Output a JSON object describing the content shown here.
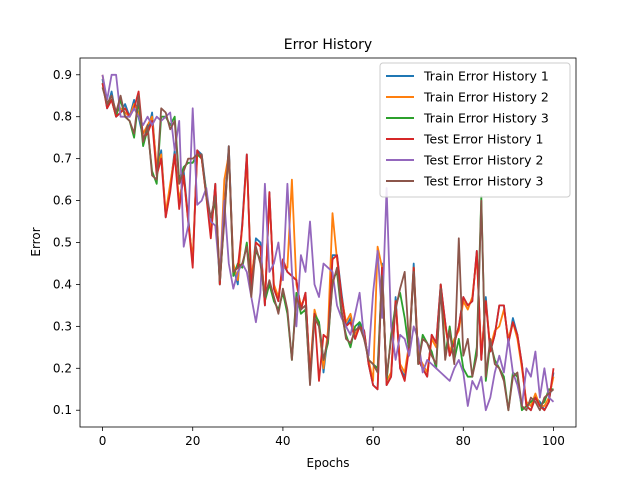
{
  "chart_data": {
    "type": "line",
    "title": "Error History",
    "xlabel": "Epochs",
    "ylabel": "Error",
    "xlim": [
      -5,
      105
    ],
    "ylim": [
      0.06,
      0.94
    ],
    "xticks": [
      0,
      20,
      40,
      60,
      80,
      100
    ],
    "yticks": [
      0.1,
      0.2,
      0.3,
      0.4,
      0.5,
      0.6,
      0.7,
      0.8,
      0.9
    ],
    "grid": false,
    "legend": "top-right",
    "series": [
      {
        "name": "Train Error History 1",
        "color": "#1f77b4",
        "x": [
          0,
          1,
          2,
          3,
          4,
          5,
          6,
          7,
          8,
          9,
          10,
          11,
          12,
          13,
          14,
          15,
          16,
          17,
          18,
          19,
          20,
          21,
          22,
          23,
          24,
          25,
          26,
          27,
          28,
          29,
          30,
          31,
          32,
          33,
          34,
          35,
          36,
          37,
          38,
          39,
          40,
          41,
          42,
          43,
          44,
          45,
          46,
          47,
          48,
          49,
          50,
          51,
          52,
          53,
          54,
          55,
          56,
          57,
          58,
          59,
          60,
          61,
          62,
          63,
          64,
          65,
          66,
          67,
          68,
          69,
          70,
          71,
          72,
          73,
          74,
          75,
          76,
          77,
          78,
          79,
          80,
          81,
          82,
          83,
          84,
          85,
          86,
          87,
          88,
          89,
          90,
          91,
          92,
          93,
          94,
          95,
          96,
          97,
          98,
          99,
          100
        ],
        "values": [
          0.89,
          0.82,
          0.86,
          0.8,
          0.81,
          0.83,
          0.8,
          0.84,
          0.8,
          0.75,
          0.76,
          0.81,
          0.67,
          0.72,
          0.56,
          0.63,
          0.72,
          0.59,
          0.67,
          0.56,
          0.45,
          0.72,
          0.71,
          0.62,
          0.52,
          0.64,
          0.4,
          0.58,
          0.73,
          0.44,
          0.4,
          0.55,
          0.71,
          0.4,
          0.51,
          0.5,
          0.35,
          0.62,
          0.39,
          0.36,
          0.45,
          0.43,
          0.42,
          0.41,
          0.34,
          0.38,
          0.18,
          0.33,
          0.31,
          0.19,
          0.28,
          0.47,
          0.47,
          0.38,
          0.3,
          0.32,
          0.27,
          0.31,
          0.29,
          0.21,
          0.16,
          0.15,
          0.45,
          0.16,
          0.18,
          0.37,
          0.2,
          0.18,
          0.25,
          0.45,
          0.22,
          0.2,
          0.18,
          0.28,
          0.26,
          0.4,
          0.31,
          0.23,
          0.26,
          0.3,
          0.37,
          0.35,
          0.36,
          0.48,
          0.22,
          0.37,
          0.24,
          0.28,
          0.35,
          0.35,
          0.26,
          0.32,
          0.28,
          0.21,
          0.11,
          0.1,
          0.13,
          0.12,
          0.1,
          0.12,
          0.19
        ]
      },
      {
        "name": "Train Error History 2",
        "color": "#ff7f0e",
        "x": [
          0,
          1,
          2,
          3,
          4,
          5,
          6,
          7,
          8,
          9,
          10,
          11,
          12,
          13,
          14,
          15,
          16,
          17,
          18,
          19,
          20,
          21,
          22,
          23,
          24,
          25,
          26,
          27,
          28,
          29,
          30,
          31,
          32,
          33,
          34,
          35,
          36,
          37,
          38,
          39,
          40,
          41,
          42,
          43,
          44,
          45,
          46,
          47,
          48,
          49,
          50,
          51,
          52,
          53,
          54,
          55,
          56,
          57,
          58,
          59,
          60,
          61,
          62,
          63,
          64,
          65,
          66,
          67,
          68,
          69,
          70,
          71,
          72,
          73,
          74,
          75,
          76,
          77,
          78,
          79,
          80,
          81,
          82,
          83,
          84,
          85,
          86,
          87,
          88,
          89,
          90,
          91,
          92,
          93,
          94,
          95,
          96,
          97,
          98,
          99,
          100
        ],
        "values": [
          0.9,
          0.83,
          0.85,
          0.81,
          0.82,
          0.81,
          0.8,
          0.83,
          0.81,
          0.76,
          0.78,
          0.8,
          0.68,
          0.71,
          0.57,
          0.64,
          0.71,
          0.6,
          0.66,
          0.55,
          0.46,
          0.71,
          0.7,
          0.61,
          0.53,
          0.63,
          0.41,
          0.65,
          0.71,
          0.45,
          0.41,
          0.54,
          0.7,
          0.41,
          0.5,
          0.49,
          0.36,
          0.61,
          0.4,
          0.37,
          0.44,
          0.44,
          0.65,
          0.4,
          0.35,
          0.37,
          0.19,
          0.34,
          0.3,
          0.2,
          0.29,
          0.57,
          0.46,
          0.37,
          0.31,
          0.33,
          0.28,
          0.3,
          0.28,
          0.22,
          0.17,
          0.49,
          0.44,
          0.17,
          0.19,
          0.36,
          0.21,
          0.19,
          0.26,
          0.44,
          0.23,
          0.21,
          0.19,
          0.27,
          0.25,
          0.39,
          0.3,
          0.24,
          0.27,
          0.29,
          0.36,
          0.34,
          0.37,
          0.47,
          0.23,
          0.36,
          0.25,
          0.29,
          0.3,
          0.34,
          0.27,
          0.31,
          0.27,
          0.2,
          0.12,
          0.11,
          0.14,
          0.11,
          0.11,
          0.13,
          0.18
        ]
      },
      {
        "name": "Train Error History 3",
        "color": "#2ca02c",
        "x": [
          0,
          1,
          2,
          3,
          4,
          5,
          6,
          7,
          8,
          9,
          10,
          11,
          12,
          13,
          14,
          15,
          16,
          17,
          18,
          19,
          20,
          21,
          22,
          23,
          24,
          25,
          26,
          27,
          28,
          29,
          30,
          31,
          32,
          33,
          34,
          35,
          36,
          37,
          38,
          39,
          40,
          41,
          42,
          43,
          44,
          45,
          46,
          47,
          48,
          49,
          50,
          51,
          52,
          53,
          54,
          55,
          56,
          57,
          58,
          59,
          60,
          61,
          62,
          63,
          64,
          65,
          66,
          67,
          68,
          69,
          70,
          71,
          72,
          73,
          74,
          75,
          76,
          77,
          78,
          79,
          80,
          81,
          82,
          83,
          84,
          85,
          86,
          87,
          88,
          89,
          90,
          91,
          92,
          93,
          94,
          95,
          96,
          97,
          98,
          99,
          100
        ],
        "values": [
          0.88,
          0.83,
          0.84,
          0.8,
          0.84,
          0.8,
          0.79,
          0.75,
          0.84,
          0.73,
          0.77,
          0.67,
          0.64,
          0.8,
          0.8,
          0.78,
          0.8,
          0.65,
          0.68,
          0.69,
          0.69,
          0.71,
          0.7,
          0.62,
          0.55,
          0.6,
          0.4,
          0.56,
          0.72,
          0.42,
          0.45,
          0.44,
          0.5,
          0.4,
          0.48,
          0.46,
          0.36,
          0.4,
          0.36,
          0.34,
          0.38,
          0.33,
          0.22,
          0.38,
          0.33,
          0.34,
          0.17,
          0.33,
          0.31,
          0.22,
          0.26,
          0.41,
          0.43,
          0.33,
          0.28,
          0.25,
          0.3,
          0.31,
          0.28,
          0.22,
          0.21,
          0.2,
          0.43,
          0.17,
          0.28,
          0.35,
          0.38,
          0.32,
          0.24,
          0.44,
          0.21,
          0.28,
          0.26,
          0.24,
          0.2,
          0.4,
          0.23,
          0.3,
          0.22,
          0.27,
          0.2,
          0.18,
          0.18,
          0.25,
          0.61,
          0.17,
          0.26,
          0.22,
          0.2,
          0.18,
          0.1,
          0.19,
          0.18,
          0.1,
          0.11,
          0.12,
          0.13,
          0.11,
          0.12,
          0.15,
          0.15
        ]
      },
      {
        "name": "Test Error History 1",
        "color": "#d62728",
        "x": [
          0,
          1,
          2,
          3,
          4,
          5,
          6,
          7,
          8,
          9,
          10,
          11,
          12,
          13,
          14,
          15,
          16,
          17,
          18,
          19,
          20,
          21,
          22,
          23,
          24,
          25,
          26,
          27,
          28,
          29,
          30,
          31,
          32,
          33,
          34,
          35,
          36,
          37,
          38,
          39,
          40,
          41,
          42,
          43,
          44,
          45,
          46,
          47,
          48,
          49,
          50,
          51,
          52,
          53,
          54,
          55,
          56,
          57,
          58,
          59,
          60,
          61,
          62,
          63,
          64,
          65,
          66,
          67,
          68,
          69,
          70,
          71,
          72,
          73,
          74,
          75,
          76,
          77,
          78,
          79,
          80,
          81,
          82,
          83,
          84,
          85,
          86,
          87,
          88,
          89,
          90,
          91,
          92,
          93,
          94,
          95,
          96,
          97,
          98,
          99,
          100
        ],
        "values": [
          0.88,
          0.82,
          0.84,
          0.8,
          0.81,
          0.82,
          0.8,
          0.82,
          0.86,
          0.75,
          0.76,
          0.79,
          0.66,
          0.7,
          0.56,
          0.62,
          0.71,
          0.58,
          0.66,
          0.55,
          0.44,
          0.72,
          0.7,
          0.61,
          0.51,
          0.64,
          0.4,
          0.57,
          0.72,
          0.43,
          0.44,
          0.54,
          0.71,
          0.39,
          0.5,
          0.49,
          0.35,
          0.62,
          0.39,
          0.36,
          0.46,
          0.43,
          0.42,
          0.41,
          0.34,
          0.38,
          0.18,
          0.33,
          0.17,
          0.28,
          0.27,
          0.46,
          0.47,
          0.37,
          0.3,
          0.31,
          0.27,
          0.3,
          0.29,
          0.21,
          0.16,
          0.15,
          0.44,
          0.16,
          0.18,
          0.36,
          0.2,
          0.17,
          0.25,
          0.44,
          0.22,
          0.2,
          0.18,
          0.28,
          0.26,
          0.4,
          0.31,
          0.23,
          0.26,
          0.3,
          0.37,
          0.35,
          0.36,
          0.48,
          0.22,
          0.36,
          0.24,
          0.28,
          0.35,
          0.35,
          0.26,
          0.31,
          0.28,
          0.21,
          0.11,
          0.1,
          0.13,
          0.11,
          0.1,
          0.12,
          0.2
        ]
      },
      {
        "name": "Test Error History 2",
        "color": "#9467bd",
        "x": [
          0,
          1,
          2,
          3,
          4,
          5,
          6,
          7,
          8,
          9,
          10,
          11,
          12,
          13,
          14,
          15,
          16,
          17,
          18,
          19,
          20,
          21,
          22,
          23,
          24,
          25,
          26,
          27,
          28,
          29,
          30,
          31,
          32,
          33,
          34,
          35,
          36,
          37,
          38,
          39,
          40,
          41,
          42,
          43,
          44,
          45,
          46,
          47,
          48,
          49,
          50,
          51,
          52,
          53,
          54,
          55,
          56,
          57,
          58,
          59,
          60,
          61,
          62,
          63,
          64,
          65,
          66,
          67,
          68,
          69,
          70,
          71,
          72,
          73,
          74,
          75,
          76,
          77,
          78,
          79,
          80,
          81,
          82,
          83,
          84,
          85,
          86,
          87,
          88,
          89,
          90,
          91,
          92,
          93,
          94,
          95,
          96,
          97,
          98,
          99,
          100
        ],
        "values": [
          0.9,
          0.84,
          0.9,
          0.9,
          0.8,
          0.8,
          0.8,
          0.82,
          0.8,
          0.78,
          0.8,
          0.78,
          0.8,
          0.79,
          0.8,
          0.81,
          0.72,
          0.79,
          0.49,
          0.54,
          0.82,
          0.59,
          0.6,
          0.63,
          0.55,
          0.54,
          0.42,
          0.6,
          0.45,
          0.39,
          0.43,
          0.45,
          0.43,
          0.37,
          0.31,
          0.38,
          0.64,
          0.43,
          0.45,
          0.5,
          0.41,
          0.64,
          0.43,
          0.3,
          0.47,
          0.43,
          0.55,
          0.4,
          0.37,
          0.45,
          0.44,
          0.43,
          0.35,
          0.32,
          0.3,
          0.28,
          0.33,
          0.38,
          0.27,
          0.23,
          0.38,
          0.48,
          0.32,
          0.63,
          0.3,
          0.22,
          0.28,
          0.27,
          0.23,
          0.3,
          0.27,
          0.19,
          0.22,
          0.21,
          0.2,
          0.19,
          0.18,
          0.17,
          0.2,
          0.22,
          0.19,
          0.11,
          0.17,
          0.15,
          0.18,
          0.1,
          0.13,
          0.19,
          0.23,
          0.19,
          0.27,
          0.19,
          0.16,
          0.11,
          0.2,
          0.18,
          0.24,
          0.13,
          0.2,
          0.13,
          0.12
        ]
      },
      {
        "name": "Test Error History 3",
        "color": "#8c564b",
        "x": [
          0,
          1,
          2,
          3,
          4,
          5,
          6,
          7,
          8,
          9,
          10,
          11,
          12,
          13,
          14,
          15,
          16,
          17,
          18,
          19,
          20,
          21,
          22,
          23,
          24,
          25,
          26,
          27,
          28,
          29,
          30,
          31,
          32,
          33,
          34,
          35,
          36,
          37,
          38,
          39,
          40,
          41,
          42,
          43,
          44,
          45,
          46,
          47,
          48,
          49,
          50,
          51,
          52,
          53,
          54,
          55,
          56,
          57,
          58,
          59,
          60,
          61,
          62,
          63,
          64,
          65,
          66,
          67,
          68,
          69,
          70,
          71,
          72,
          73,
          74,
          75,
          76,
          77,
          78,
          79,
          80,
          81,
          82,
          83,
          84,
          85,
          86,
          87,
          88,
          89,
          90,
          91,
          92,
          93,
          94,
          95,
          96,
          97,
          98,
          99,
          100
        ],
        "values": [
          0.87,
          0.83,
          0.85,
          0.81,
          0.85,
          0.8,
          0.79,
          0.76,
          0.85,
          0.74,
          0.78,
          0.66,
          0.65,
          0.82,
          0.81,
          0.77,
          0.79,
          0.64,
          0.67,
          0.7,
          0.7,
          0.71,
          0.71,
          0.61,
          0.56,
          0.61,
          0.41,
          0.55,
          0.73,
          0.43,
          0.44,
          0.45,
          0.49,
          0.37,
          0.49,
          0.45,
          0.37,
          0.41,
          0.37,
          0.33,
          0.39,
          0.34,
          0.22,
          0.37,
          0.34,
          0.35,
          0.16,
          0.32,
          0.3,
          0.22,
          0.27,
          0.4,
          0.44,
          0.34,
          0.27,
          0.26,
          0.29,
          0.3,
          0.27,
          0.22,
          0.21,
          0.19,
          0.42,
          0.18,
          0.27,
          0.34,
          0.39,
          0.43,
          0.25,
          0.43,
          0.21,
          0.27,
          0.26,
          0.23,
          0.21,
          0.39,
          0.22,
          0.29,
          0.21,
          0.51,
          0.23,
          0.27,
          0.18,
          0.23,
          0.6,
          0.18,
          0.27,
          0.21,
          0.2,
          0.17,
          0.1,
          0.18,
          0.19,
          0.11,
          0.1,
          0.13,
          0.12,
          0.1,
          0.13,
          0.14,
          0.15
        ]
      }
    ]
  }
}
